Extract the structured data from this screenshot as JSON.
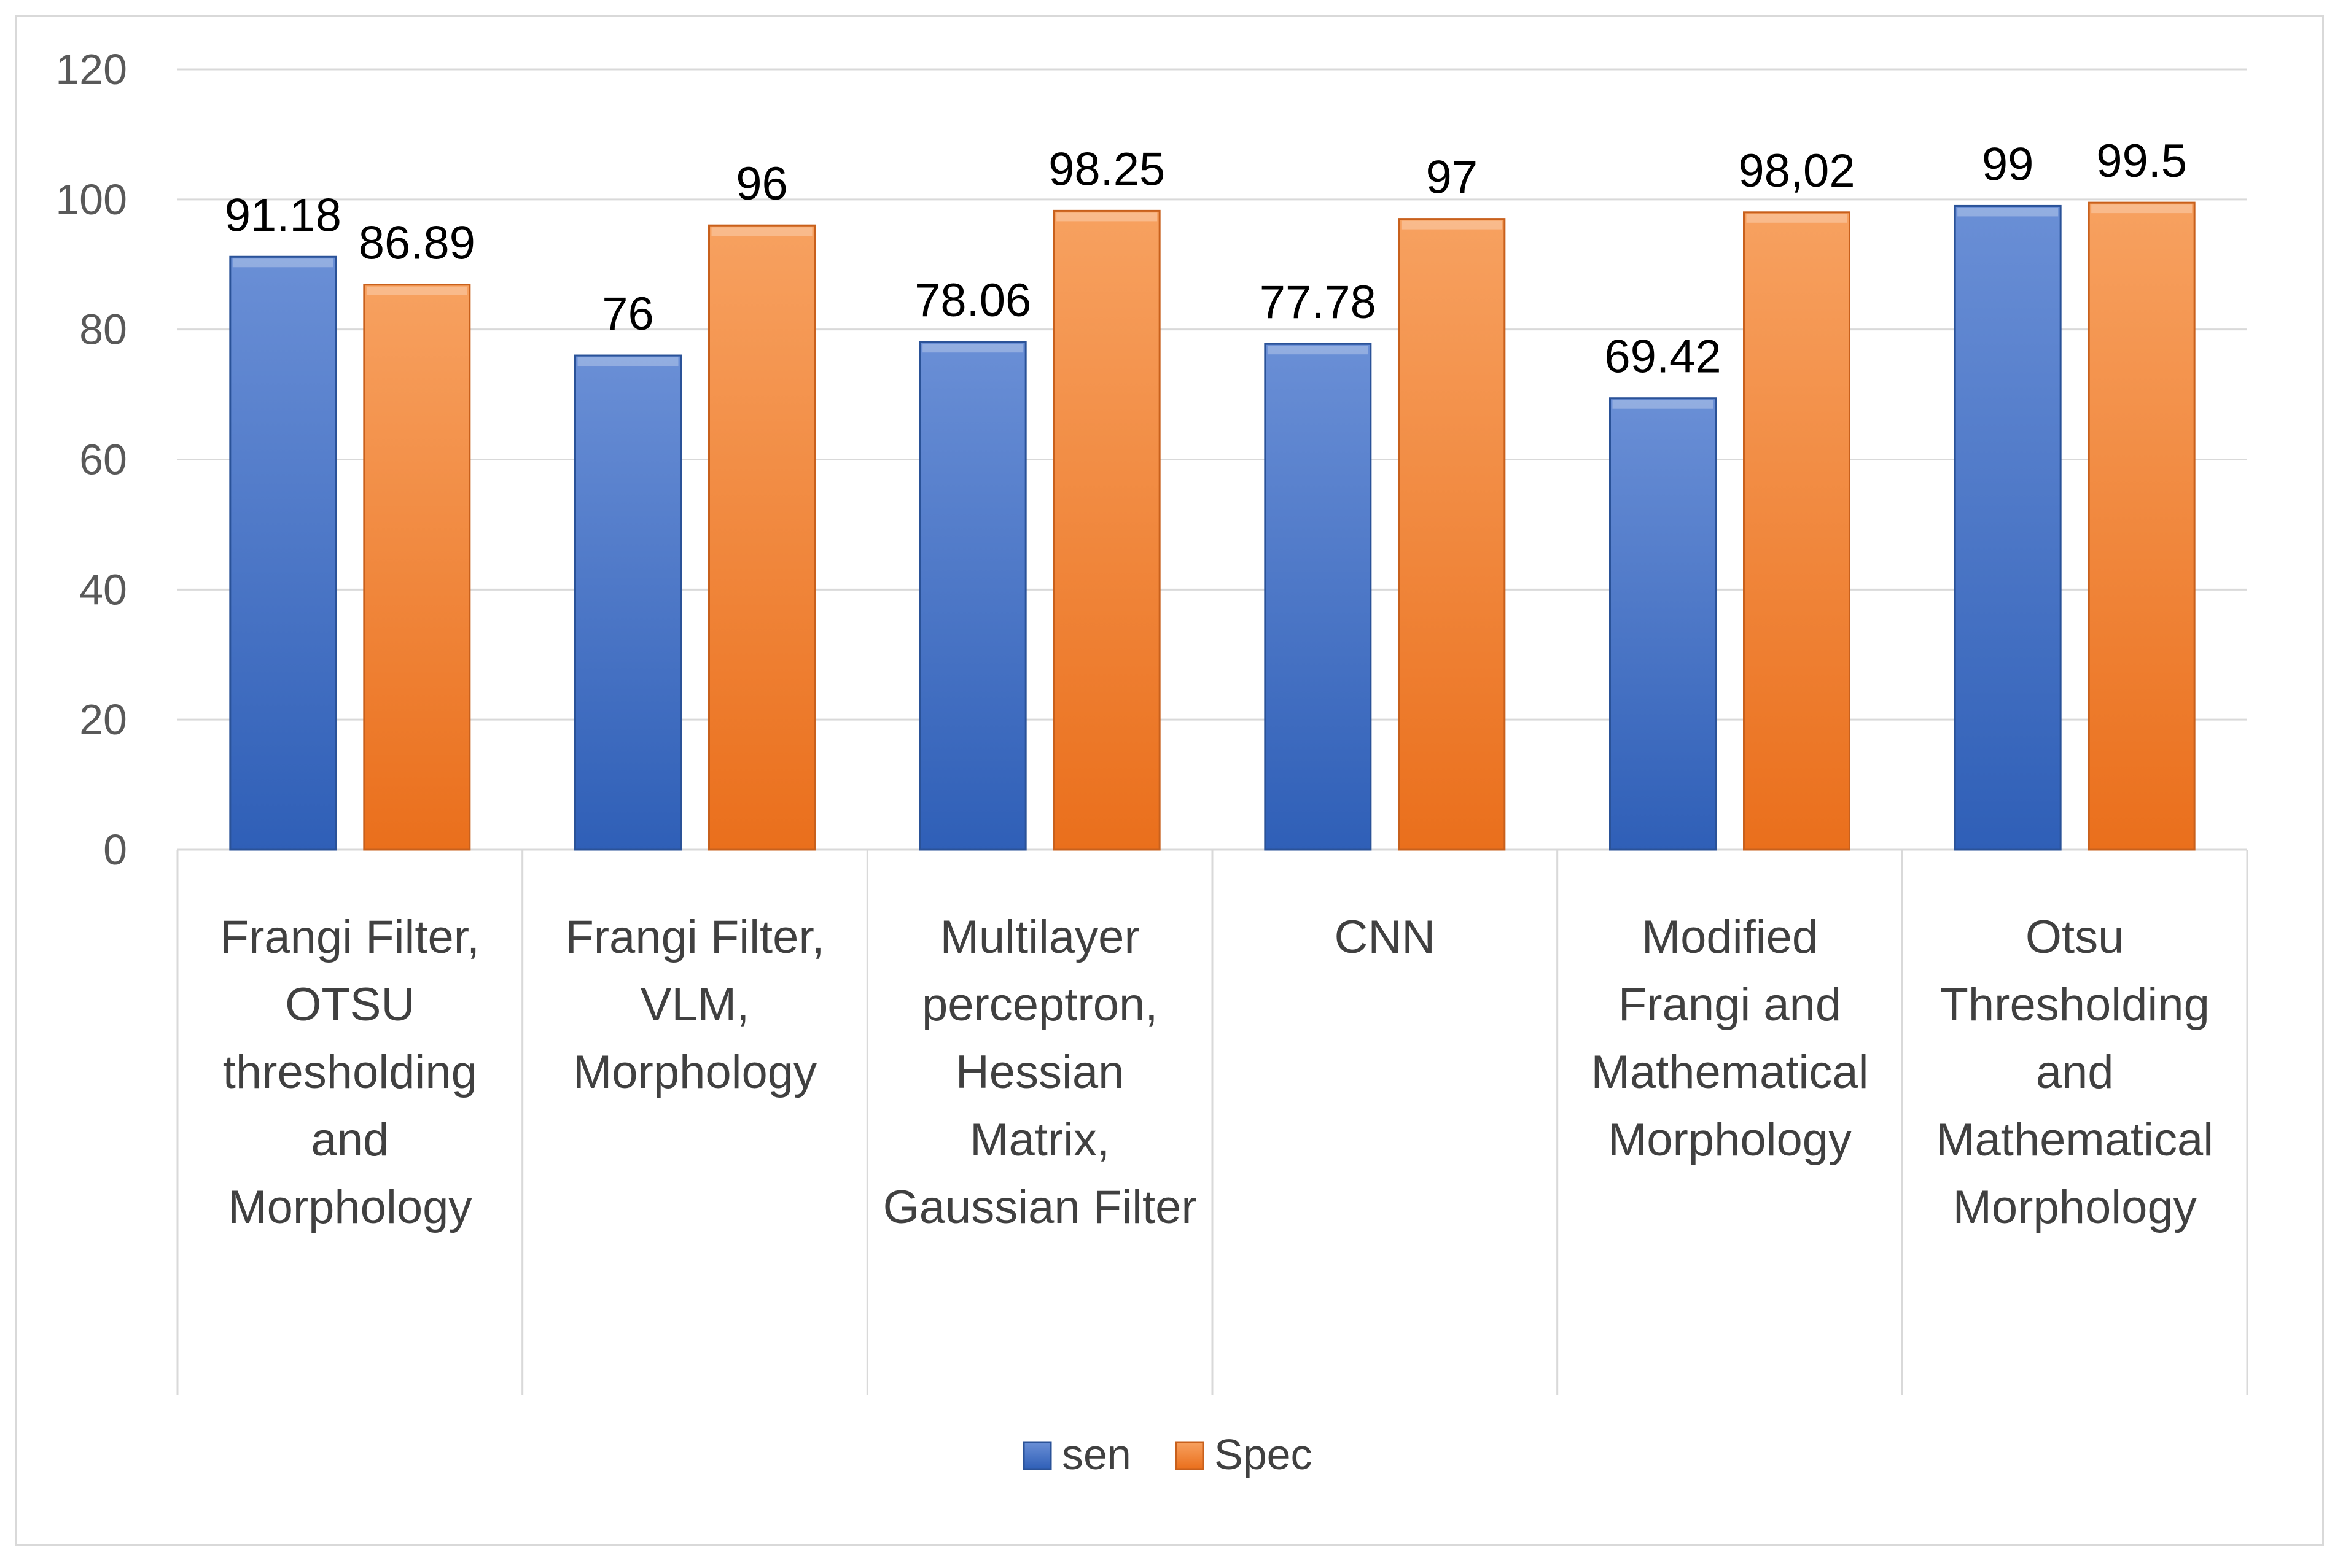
{
  "chart_data": {
    "type": "bar",
    "title": "",
    "xlabel": "",
    "ylabel": "",
    "ylim": [
      0,
      120
    ],
    "yticks": [
      0,
      20,
      40,
      60,
      80,
      100,
      120
    ],
    "grid": true,
    "legend_position": "bottom",
    "categories": [
      [
        "Frangi Filter,",
        "OTSU",
        "thresholding",
        "and",
        "Morphology"
      ],
      [
        "Frangi Filter,",
        "VLM,",
        "Morphology"
      ],
      [
        "Multilayer",
        "perceptron,",
        "Hessian",
        "Matrix,",
        "Gaussian Filter"
      ],
      [
        "CNN"
      ],
      [
        "Modified",
        "Frangi and",
        "Mathematical",
        "Morphology"
      ],
      [
        "Otsu",
        "Thresholding",
        "and",
        "Mathematical",
        "Morphology"
      ]
    ],
    "series": [
      {
        "name": "sen",
        "color": "#4472c4",
        "values": [
          91.18,
          76,
          78.06,
          77.78,
          69.42,
          99
        ],
        "labels": [
          "91.18",
          "76",
          "78.06",
          "77.78",
          "69.42",
          "99"
        ]
      },
      {
        "name": "Spec",
        "color": "#ed7d31",
        "values": [
          86.89,
          96,
          98.25,
          97,
          98.02,
          99.5
        ],
        "labels": [
          "86.89",
          "96",
          "98.25",
          "97",
          "98,02",
          "99.5"
        ]
      }
    ]
  }
}
